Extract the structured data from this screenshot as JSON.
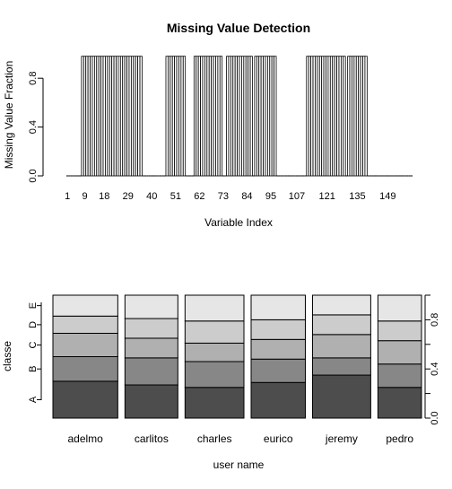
{
  "chart_data": [
    {
      "type": "bar",
      "title": "Missing Value Detection",
      "xlabel": "Variable Index",
      "ylabel": "Missing Value Fraction",
      "ylim": [
        0,
        1
      ],
      "yticks": [
        0.0,
        0.4,
        0.8
      ],
      "ytick_labels": [
        "0.0",
        "0.4",
        "0.8"
      ],
      "xticks": [
        1,
        9,
        18,
        29,
        40,
        51,
        62,
        73,
        84,
        95,
        107,
        121,
        135,
        149
      ],
      "n_variables": 160,
      "missing_runs": [
        {
          "from": 8,
          "to": 35,
          "value": 0.98
        },
        {
          "from": 47,
          "to": 55,
          "value": 0.98
        },
        {
          "from": 60,
          "to": 72,
          "value": 0.98
        },
        {
          "from": 75,
          "to": 86,
          "value": 0.98
        },
        {
          "from": 88,
          "to": 97,
          "value": 0.98
        },
        {
          "from": 112,
          "to": 129,
          "value": 0.98
        },
        {
          "from": 131,
          "to": 139,
          "value": 0.98
        }
      ],
      "grid": false
    },
    {
      "type": "bar",
      "subtype": "spineplot",
      "xlabel": "user name",
      "ylabel": "classe",
      "categories": [
        "adelmo",
        "carlitos",
        "charles",
        "eurico",
        "jeremy",
        "pedro"
      ],
      "category_widths": [
        0.195,
        0.159,
        0.177,
        0.163,
        0.175,
        0.131
      ],
      "levels": [
        "A",
        "B",
        "C",
        "D",
        "E"
      ],
      "level_colors": [
        "#4d4d4d",
        "#878787",
        "#b0b0b0",
        "#cccccc",
        "#e6e6e6"
      ],
      "series": [
        {
          "name": "A",
          "values": [
            0.3,
            0.27,
            0.25,
            0.29,
            0.35,
            0.25
          ]
        },
        {
          "name": "B",
          "values": [
            0.2,
            0.22,
            0.21,
            0.19,
            0.14,
            0.19
          ]
        },
        {
          "name": "C",
          "values": [
            0.19,
            0.16,
            0.15,
            0.16,
            0.19,
            0.19
          ]
        },
        {
          "name": "D",
          "values": [
            0.14,
            0.16,
            0.18,
            0.16,
            0.16,
            0.16
          ]
        },
        {
          "name": "E",
          "values": [
            0.17,
            0.19,
            0.21,
            0.2,
            0.16,
            0.21
          ]
        }
      ],
      "right_axis_ticks": [
        0.0,
        0.4,
        0.8
      ],
      "right_axis_tick_labels": [
        "0.0",
        "0.4",
        "0.8"
      ],
      "ylim": [
        0,
        1
      ],
      "grid": false
    }
  ]
}
